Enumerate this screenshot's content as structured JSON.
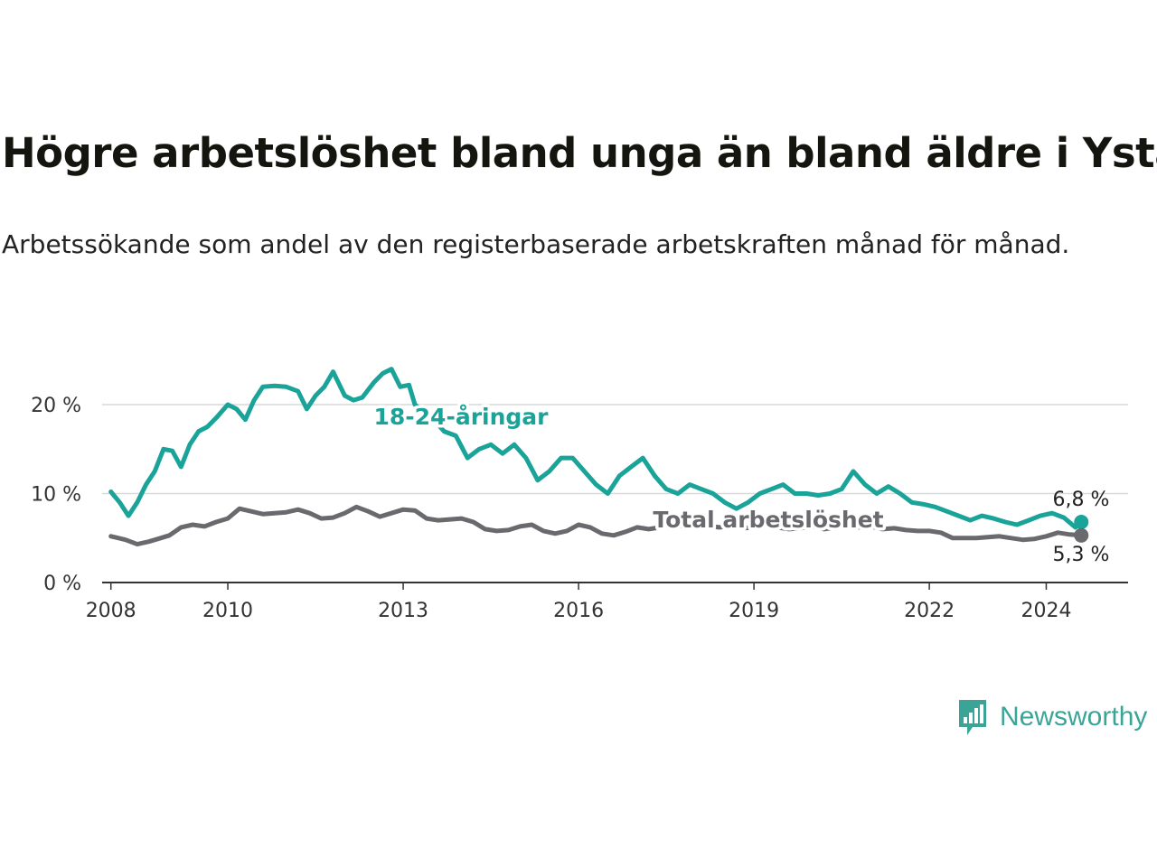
{
  "title": "Högre arbetslöshet bland unga än bland äldre i Ystad",
  "subtitle": "Arbetssökande som andel av den registerbaserade arbetskraften månad för månad.",
  "brand": {
    "name": "Newsworthy",
    "color": "#3aa597",
    "icon": "newsworthy-logo-icon"
  },
  "chart_data": {
    "type": "line",
    "title": "Högre arbetslöshet bland unga än bland äldre i Ystad",
    "xlabel": "",
    "ylabel": "",
    "xlim": [
      2007.85,
      2025.4
    ],
    "ylim": [
      0,
      20
    ],
    "grid": true,
    "x_ticks": [
      2008,
      2010,
      2013,
      2016,
      2019,
      2022,
      2024
    ],
    "x_tick_labels": [
      "2008",
      "2010",
      "2013",
      "2016",
      "2019",
      "2022",
      "2024"
    ],
    "y_ticks": [
      0,
      10,
      20
    ],
    "y_tick_labels": [
      "0 %",
      "10 %",
      "20 %"
    ],
    "series": [
      {
        "name": "18-24-åringar",
        "color": "#1aa398",
        "end_label": "6,8 %",
        "x": [
          2008.0,
          2008.15,
          2008.3,
          2008.45,
          2008.6,
          2008.75,
          2008.9,
          2009.05,
          2009.2,
          2009.35,
          2009.5,
          2009.65,
          2009.8,
          2010.0,
          2010.15,
          2010.3,
          2010.45,
          2010.6,
          2010.8,
          2011.0,
          2011.2,
          2011.35,
          2011.5,
          2011.65,
          2011.8,
          2012.0,
          2012.15,
          2012.3,
          2012.5,
          2012.65,
          2012.8,
          2012.95,
          2013.1,
          2013.2,
          2013.35,
          2013.5,
          2013.7,
          2013.9,
          2014.1,
          2014.3,
          2014.5,
          2014.7,
          2014.9,
          2015.1,
          2015.3,
          2015.5,
          2015.7,
          2015.9,
          2016.1,
          2016.3,
          2016.5,
          2016.7,
          2016.9,
          2017.1,
          2017.3,
          2017.5,
          2017.7,
          2017.9,
          2018.1,
          2018.3,
          2018.5,
          2018.7,
          2018.9,
          2019.1,
          2019.3,
          2019.5,
          2019.7,
          2019.9,
          2020.1,
          2020.3,
          2020.5,
          2020.7,
          2020.9,
          2021.1,
          2021.3,
          2021.5,
          2021.7,
          2021.9,
          2022.1,
          2022.3,
          2022.5,
          2022.7,
          2022.9,
          2023.1,
          2023.3,
          2023.5,
          2023.7,
          2023.9,
          2024.1,
          2024.3,
          2024.5,
          2024.6
        ],
        "values": [
          10.2,
          9.0,
          7.5,
          9.0,
          11.0,
          12.5,
          15.0,
          14.8,
          13.0,
          15.5,
          17.0,
          17.5,
          18.5,
          20.0,
          19.5,
          18.3,
          20.5,
          22.0,
          22.1,
          22.0,
          21.5,
          19.5,
          21.0,
          22.0,
          23.7,
          21.0,
          20.5,
          20.8,
          22.5,
          23.5,
          24.0,
          22.0,
          22.2,
          20.0,
          19.2,
          18.5,
          17.0,
          16.5,
          14.0,
          15.0,
          15.5,
          14.5,
          15.5,
          14.0,
          11.5,
          12.5,
          14.0,
          14.0,
          12.5,
          11.0,
          10.0,
          12.0,
          13.0,
          14.0,
          12.0,
          10.5,
          10.0,
          11.0,
          10.5,
          10.0,
          9.0,
          8.3,
          9.0,
          10.0,
          10.5,
          11.0,
          10.0,
          10.0,
          9.8,
          10.0,
          10.5,
          12.5,
          11.0,
          10.0,
          10.8,
          10.0,
          9.0,
          8.8,
          8.5,
          8.0,
          7.5,
          7.0,
          7.5,
          7.2,
          6.8,
          6.5,
          7.0,
          7.5,
          7.8,
          7.3,
          6.2,
          6.8
        ]
      },
      {
        "name": "Total arbetslöshet",
        "color": "#6a6a6e",
        "end_label": "5,3 %",
        "x": [
          2008.0,
          2008.25,
          2008.45,
          2008.65,
          2008.85,
          2009.0,
          2009.2,
          2009.4,
          2009.6,
          2009.8,
          2010.0,
          2010.2,
          2010.4,
          2010.6,
          2010.8,
          2011.0,
          2011.2,
          2011.4,
          2011.6,
          2011.8,
          2012.0,
          2012.2,
          2012.4,
          2012.6,
          2012.8,
          2013.0,
          2013.2,
          2013.4,
          2013.6,
          2013.8,
          2014.0,
          2014.2,
          2014.4,
          2014.6,
          2014.8,
          2015.0,
          2015.2,
          2015.4,
          2015.6,
          2015.8,
          2016.0,
          2016.2,
          2016.4,
          2016.6,
          2016.8,
          2017.0,
          2017.2,
          2017.4,
          2017.6,
          2017.8,
          2018.0,
          2018.2,
          2018.4,
          2018.6,
          2018.8,
          2019.0,
          2019.2,
          2019.4,
          2019.6,
          2019.8,
          2020.0,
          2020.2,
          2020.4,
          2020.6,
          2020.8,
          2021.0,
          2021.2,
          2021.4,
          2021.6,
          2021.8,
          2022.0,
          2022.2,
          2022.4,
          2022.6,
          2022.8,
          2023.0,
          2023.2,
          2023.4,
          2023.6,
          2023.8,
          2024.0,
          2024.2,
          2024.4,
          2024.6
        ],
        "values": [
          5.2,
          4.8,
          4.3,
          4.6,
          5.0,
          5.3,
          6.2,
          6.5,
          6.3,
          6.8,
          7.2,
          8.3,
          8.0,
          7.7,
          7.8,
          7.9,
          8.2,
          7.8,
          7.2,
          7.3,
          7.8,
          8.5,
          8.0,
          7.4,
          7.8,
          8.2,
          8.1,
          7.2,
          7.0,
          7.1,
          7.2,
          6.8,
          6.0,
          5.8,
          5.9,
          6.3,
          6.5,
          5.8,
          5.5,
          5.8,
          6.5,
          6.2,
          5.5,
          5.3,
          5.7,
          6.2,
          6.0,
          6.2,
          6.6,
          6.3,
          6.6,
          6.4,
          6.2,
          6.3,
          6.1,
          6.2,
          6.5,
          6.2,
          6.0,
          6.1,
          6.3,
          6.0,
          6.2,
          6.4,
          6.2,
          6.3,
          6.0,
          6.1,
          5.9,
          5.8,
          5.8,
          5.6,
          5.0,
          5.0,
          5.0,
          5.1,
          5.2,
          5.0,
          4.8,
          4.9,
          5.2,
          5.6,
          5.4,
          5.3
        ]
      }
    ]
  }
}
